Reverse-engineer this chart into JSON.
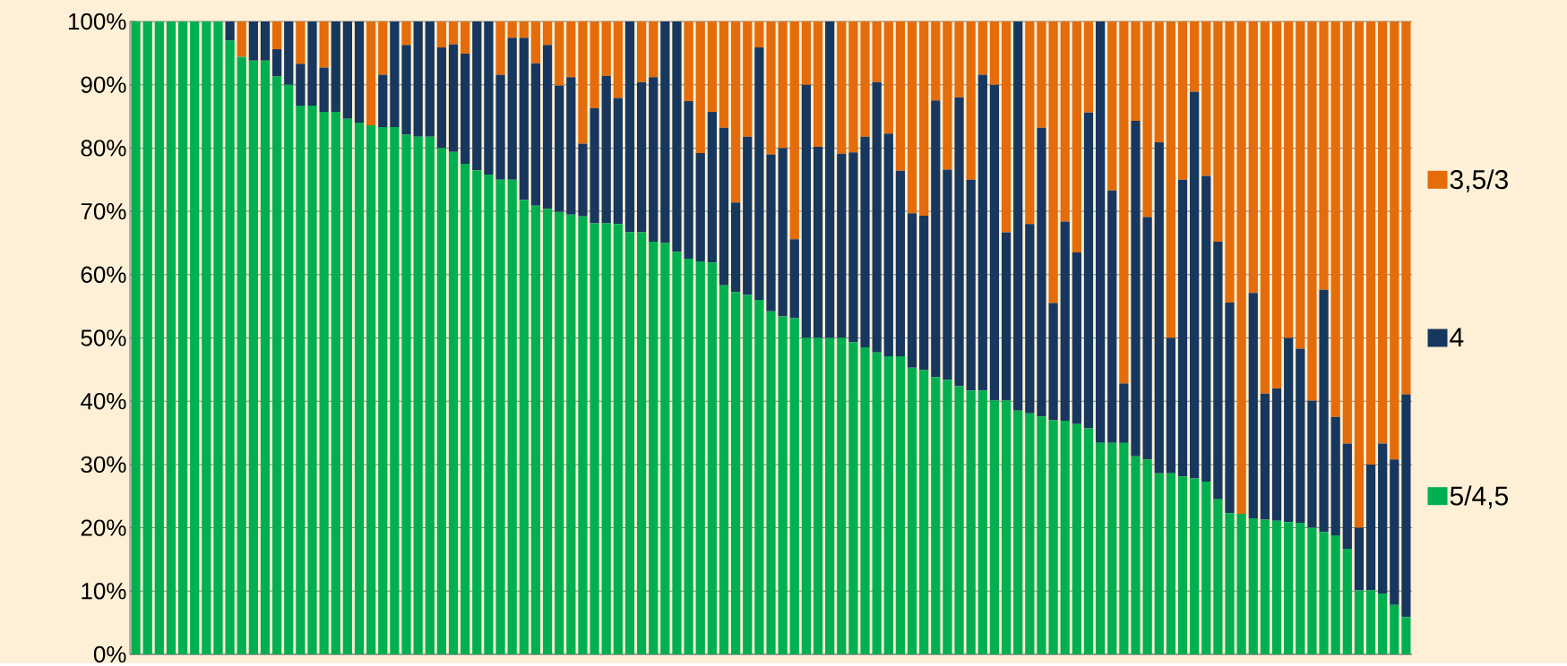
{
  "chart_data": {
    "type": "bar",
    "stacked": true,
    "grid": "y",
    "legend": "right",
    "categories": [
      null,
      null,
      null,
      null,
      null,
      null,
      null,
      null,
      null,
      null,
      null,
      null,
      null,
      null,
      null,
      null,
      null,
      null,
      null,
      null,
      null,
      null,
      null,
      null,
      null,
      null,
      null,
      null,
      null,
      null,
      null,
      null,
      null,
      null,
      null,
      null,
      null,
      null,
      null,
      null,
      null,
      null,
      null,
      null,
      null,
      null,
      null,
      null,
      null,
      null,
      null,
      null,
      null,
      null,
      null,
      null,
      null,
      null,
      null,
      null,
      null,
      null,
      null,
      null,
      null,
      null,
      null,
      null,
      null,
      null,
      null,
      null,
      null,
      null,
      null,
      null,
      null,
      null,
      null,
      null,
      null,
      null,
      null,
      null,
      null,
      null,
      null,
      null,
      null,
      null,
      null,
      null,
      null,
      null,
      null,
      null,
      null,
      null,
      null,
      null,
      null,
      null,
      null,
      null,
      null,
      null,
      null,
      null,
      null
    ],
    "ylim": [
      0,
      100
    ],
    "yticks": [
      {
        "value": 0,
        "label": "0%"
      },
      {
        "value": 10,
        "label": "10%"
      },
      {
        "value": 20,
        "label": "20%"
      },
      {
        "value": 30,
        "label": "30%"
      },
      {
        "value": 40,
        "label": "40%"
      },
      {
        "value": 50,
        "label": "50%"
      },
      {
        "value": 60,
        "label": "60%"
      },
      {
        "value": 70,
        "label": "70%"
      },
      {
        "value": 80,
        "label": "80%"
      },
      {
        "value": 90,
        "label": "90%"
      },
      {
        "value": 100,
        "label": "100%"
      }
    ],
    "series": [
      {
        "name": "5/4,5",
        "color": "#00b050",
        "values": [
          100,
          100,
          100,
          100,
          100,
          100,
          100,
          100,
          97.0,
          94.4,
          93.8,
          93.8,
          91.3,
          90.0,
          86.7,
          86.7,
          85.7,
          85.7,
          84.6,
          84.0,
          83.6,
          83.3,
          83.3,
          82.1,
          81.8,
          81.8,
          80.0,
          79.4,
          77.5,
          76.5,
          75.8,
          75.0,
          75.0,
          71.8,
          70.9,
          70.4,
          69.9,
          69.5,
          69.2,
          68.1,
          68.1,
          68.0,
          66.7,
          66.7,
          65.2,
          65.0,
          63.6,
          62.5,
          62.1,
          61.9,
          58.3,
          57.2,
          56.8,
          56.0,
          54.2,
          53.4,
          53.1,
          50.0,
          50.0,
          50.0,
          50.0,
          49.3,
          48.5,
          47.7,
          47.1,
          47.1,
          45.3,
          44.9,
          43.8,
          43.4,
          42.4,
          41.7,
          41.7,
          40.1,
          40.1,
          38.5,
          38.1,
          37.6,
          37.0,
          36.9,
          36.4,
          35.7,
          33.4,
          33.4,
          33.4,
          31.3,
          30.8,
          28.6,
          28.6,
          28.1,
          27.8,
          27.3,
          24.5,
          22.3,
          22.2,
          21.5,
          21.3,
          21.1,
          20.9,
          20.8,
          20.0,
          19.3,
          18.8,
          16.7,
          10.1,
          10.1,
          9.6,
          7.8,
          5.9
        ]
      },
      {
        "name": "4",
        "color": "#17375e",
        "values": [
          0,
          0,
          0,
          0,
          0,
          0,
          0,
          0,
          3.0,
          0,
          6.2,
          6.2,
          4.3,
          10.0,
          6.6,
          13.3,
          7.0,
          14.3,
          15.4,
          16.0,
          0,
          8.3,
          16.7,
          14.2,
          18.2,
          18.2,
          15.9,
          17.0,
          17.4,
          23.5,
          24.2,
          16.6,
          22.4,
          25.6,
          22.5,
          25.9,
          20.0,
          21.7,
          11.5,
          18.2,
          23.3,
          19.9,
          33.3,
          23.7,
          26.0,
          35.0,
          36.4,
          24.9,
          17.1,
          23.8,
          24.9,
          14.2,
          25.0,
          39.9,
          24.8,
          26.6,
          12.5,
          40.0,
          30.2,
          50.0,
          29.1,
          30.0,
          33.3,
          42.7,
          35.2,
          29.3,
          24.4,
          24.4,
          43.7,
          33.2,
          45.6,
          33.3,
          49.9,
          49.9,
          26.6,
          61.5,
          29.9,
          45.6,
          18.5,
          31.5,
          27.1,
          49.9,
          66.6,
          39.9,
          9.4,
          53.0,
          38.3,
          52.3,
          21.4,
          46.9,
          61.1,
          48.3,
          40.7,
          33.3,
          0,
          35.6,
          19.9,
          20.9,
          29.1,
          27.5,
          20.1,
          38.3,
          18.7,
          16.6,
          9.9,
          19.9,
          23.7,
          23.0,
          35.2
        ]
      },
      {
        "name": "3,5/3",
        "color": "#e46c0a",
        "values": [
          0,
          0,
          0,
          0,
          0,
          0,
          0,
          0,
          0,
          5.6,
          0,
          0,
          4.4,
          0,
          6.7,
          0,
          7.3,
          0,
          0,
          0,
          16.4,
          8.4,
          0,
          3.7,
          0,
          0,
          4.1,
          3.6,
          5.1,
          0,
          0,
          8.4,
          2.6,
          2.6,
          6.6,
          3.7,
          10.1,
          8.8,
          19.3,
          13.7,
          8.6,
          12.1,
          0,
          9.6,
          8.8,
          0,
          0,
          12.6,
          20.8,
          14.3,
          16.8,
          28.6,
          18.2,
          4.1,
          21.0,
          20.0,
          34.4,
          10.0,
          19.8,
          0,
          20.9,
          20.7,
          18.2,
          9.6,
          17.7,
          23.6,
          30.3,
          30.7,
          12.5,
          23.4,
          12.0,
          25.0,
          8.4,
          10.0,
          33.3,
          0,
          32.0,
          16.8,
          44.5,
          31.6,
          36.5,
          14.4,
          0,
          26.7,
          57.2,
          15.7,
          30.9,
          19.1,
          50.0,
          25.0,
          11.1,
          24.4,
          34.8,
          44.4,
          77.8,
          42.9,
          58.8,
          58.0,
          50.0,
          51.7,
          59.9,
          42.4,
          62.5,
          66.7,
          80.0,
          70.0,
          66.7,
          69.2,
          58.9
        ]
      }
    ]
  }
}
